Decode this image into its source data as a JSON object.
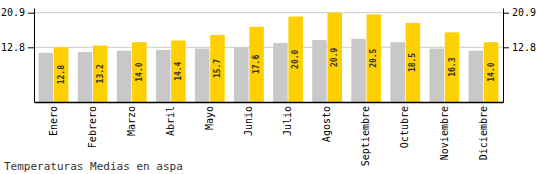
{
  "chart_data": {
    "type": "bar",
    "title": "Temperaturas Medias en aspa",
    "categories": [
      "Enero",
      "Febrero",
      "Marzo",
      "Abril",
      "Mayo",
      "Junio",
      "Julio",
      "Agosto",
      "Septiembre",
      "Octubre",
      "Noviembre",
      "Diciembre"
    ],
    "series": [
      {
        "color": "#C8C8C8",
        "values": [
          11.5,
          11.7,
          12.0,
          12.2,
          12.5,
          12.8,
          13.8,
          14.5,
          14.8,
          14.0,
          12.5,
          12.0
        ]
      },
      {
        "color": "#FFD000",
        "values": [
          12.8,
          13.2,
          14.0,
          14.4,
          15.7,
          17.6,
          20.0,
          20.9,
          20.5,
          18.5,
          16.3,
          14.0
        ],
        "data_labels": true,
        "value_labels": [
          "12.8",
          "13.2",
          "14.0",
          "14.4",
          "15.7",
          "17.6",
          "20.0",
          "20.9",
          "20.5",
          "18.5",
          "16.3",
          "14.0"
        ]
      }
    ],
    "ylim": [
      0,
      22.0
    ],
    "yticks": [
      12.8,
      20.9
    ],
    "y2lim": [
      0,
      22.0
    ],
    "y2ticks": [
      12.8,
      20.9
    ],
    "grid": true
  }
}
